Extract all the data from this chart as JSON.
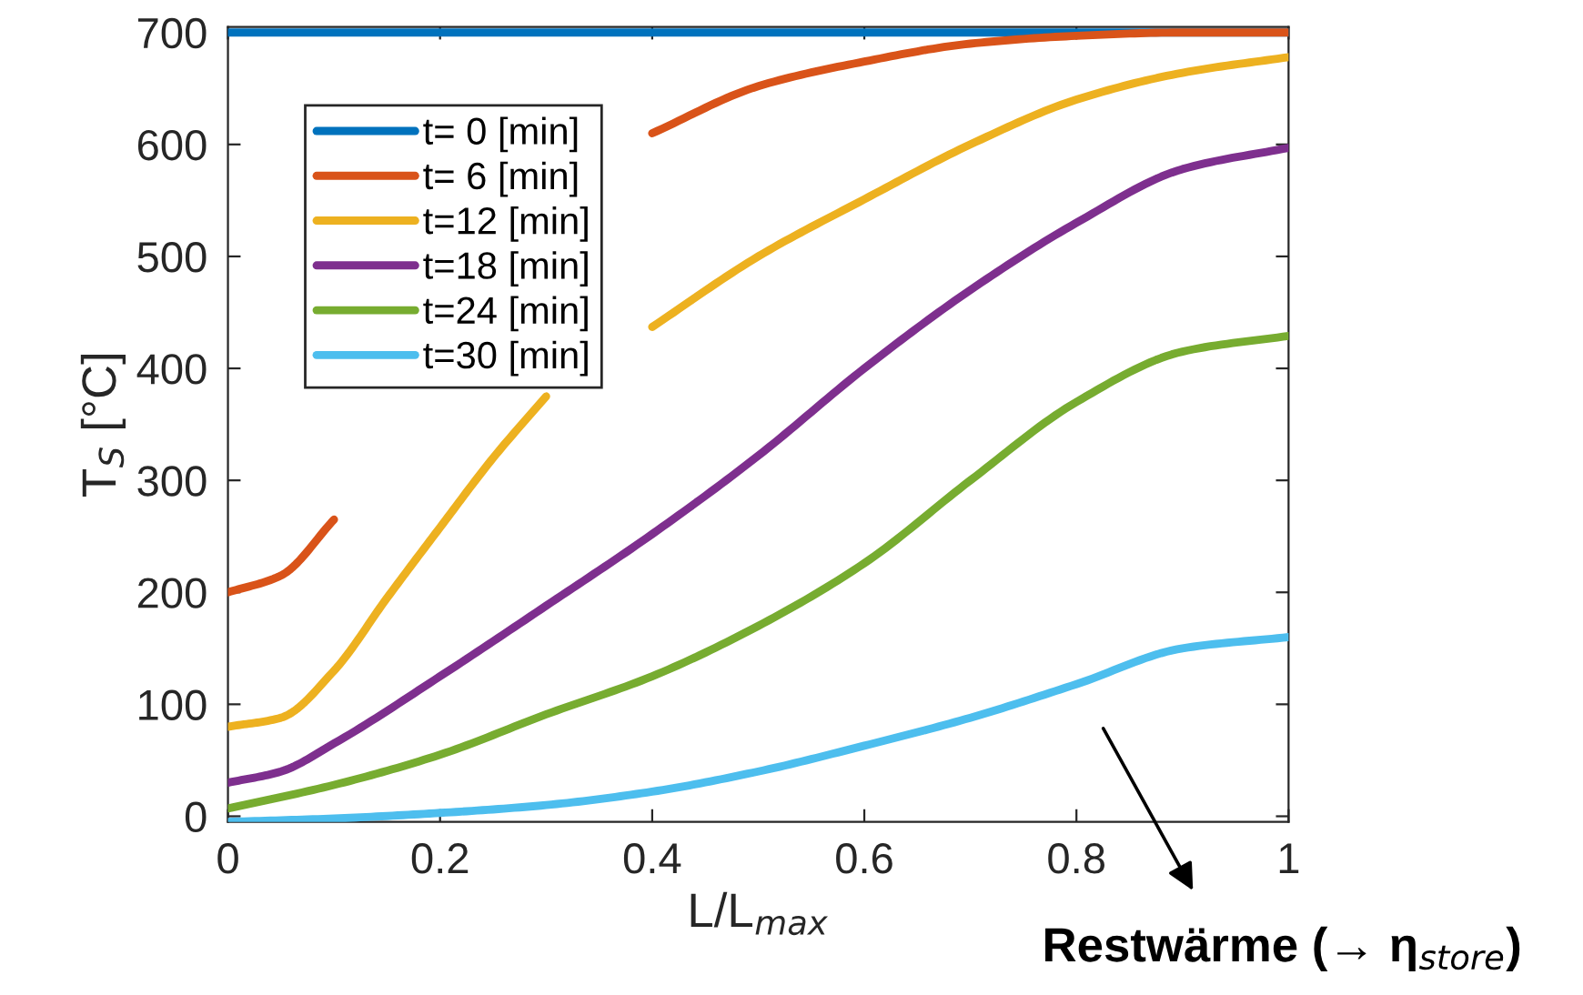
{
  "chart_data": {
    "type": "line",
    "xlabel": "L/L$_{max}$",
    "ylabel": "T$_{S}$ [°C]",
    "xlim": [
      0,
      1
    ],
    "ylim": [
      -5,
      705
    ],
    "xticks": [
      0,
      0.2,
      0.4,
      0.6,
      0.8,
      1
    ],
    "yticks": [
      0,
      100,
      200,
      300,
      400,
      500,
      600,
      700
    ],
    "grid": false,
    "legend": "top left",
    "marker": "none",
    "line_style": "solid",
    "annotations": [
      "Restwärme (→ η$_{store}$)"
    ],
    "series": [
      {
        "name": "t= 0 [min]",
        "color": "#0072bd",
        "x": [
          0,
          0.5,
          1
        ],
        "values": [
          700,
          700,
          700
        ]
      },
      {
        "name": "t= 6 [min]",
        "color": "#d95319",
        "x": [
          0,
          0.05,
          0.1,
          0.15,
          0.4,
          0.5,
          0.6,
          0.7,
          0.8,
          0.9,
          1
        ],
        "values": [
          200,
          215,
          265,
          null,
          610,
          652,
          674,
          690,
          697,
          700,
          700
        ]
      },
      {
        "name": "t=12 [min]",
        "color": "#edb120",
        "x": [
          0,
          0.05,
          0.1,
          0.15,
          0.2,
          0.25,
          0.3,
          0.35,
          0.4,
          0.5,
          0.6,
          0.7,
          0.8,
          0.9,
          1
        ],
        "values": [
          80,
          88,
          130,
          195,
          258,
          320,
          375,
          null,
          437,
          500,
          551,
          600,
          640,
          664,
          678
        ]
      },
      {
        "name": "t=18 [min]",
        "color": "#7e2f8e",
        "x": [
          0,
          0.05,
          0.1,
          0.2,
          0.3,
          0.4,
          0.5,
          0.6,
          0.7,
          0.8,
          0.9,
          1
        ],
        "values": [
          30,
          40,
          65,
          125,
          188,
          252,
          322,
          400,
          470,
          530,
          578,
          597
        ]
      },
      {
        "name": "t=24 [min]",
        "color": "#77ac30",
        "x": [
          0,
          0.1,
          0.2,
          0.3,
          0.4,
          0.5,
          0.6,
          0.7,
          0.8,
          0.9,
          1
        ],
        "values": [
          7,
          28,
          55,
          91,
          125,
          170,
          226,
          300,
          370,
          415,
          429
        ]
      },
      {
        "name": "t=30 [min]",
        "color": "#4dbeee",
        "x": [
          0,
          0.1,
          0.2,
          0.3,
          0.4,
          0.5,
          0.6,
          0.7,
          0.8,
          0.9,
          1
        ],
        "values": [
          -5,
          -2,
          3,
          10,
          22,
          40,
          63,
          88,
          118,
          150,
          160
        ]
      }
    ]
  }
}
